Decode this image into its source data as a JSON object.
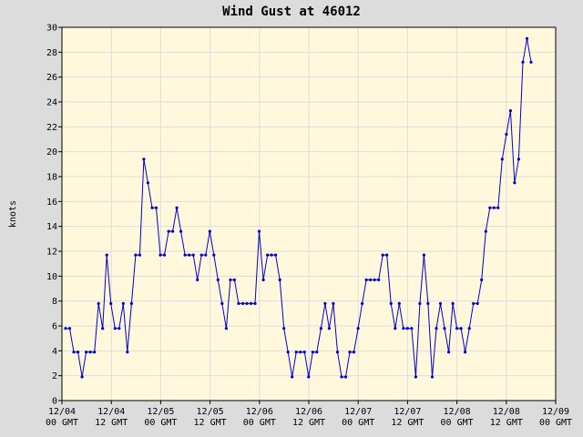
{
  "chart_data": {
    "type": "line",
    "title": "Wind Gust at 46012",
    "xlabel": "",
    "ylabel": "knots",
    "ylim": [
      0,
      30
    ],
    "y_ticks": [
      0,
      2,
      4,
      6,
      8,
      10,
      12,
      14,
      16,
      18,
      20,
      22,
      24,
      26,
      28,
      30
    ],
    "x_ticks": [
      {
        "date": "12/04",
        "time": "00 GMT"
      },
      {
        "date": "12/04",
        "time": "12 GMT"
      },
      {
        "date": "12/05",
        "time": "00 GMT"
      },
      {
        "date": "12/05",
        "time": "12 GMT"
      },
      {
        "date": "12/06",
        "time": "00 GMT"
      },
      {
        "date": "12/06",
        "time": "12 GMT"
      },
      {
        "date": "12/07",
        "time": "00 GMT"
      },
      {
        "date": "12/07",
        "time": "12 GMT"
      },
      {
        "date": "12/08",
        "time": "00 GMT"
      },
      {
        "date": "12/08",
        "time": "12 GMT"
      },
      {
        "date": "12/09",
        "time": "00 GMT"
      }
    ],
    "grid": true,
    "colors": {
      "line": "#0000cc",
      "plot_bg": "#fff8dc",
      "grid": "#dddddd",
      "page_bg": "#dcdcdc"
    },
    "series": [
      {
        "values": [
          5.8,
          5.8,
          3.9,
          3.9,
          1.9,
          3.9,
          3.9,
          3.9,
          7.8,
          5.8,
          11.7,
          7.8,
          5.8,
          5.8,
          7.8,
          3.9,
          7.8,
          11.7,
          11.7,
          19.4,
          17.5,
          15.5,
          15.5,
          11.7,
          11.7,
          13.6,
          13.6,
          15.5,
          13.6,
          11.7,
          11.7,
          11.7,
          9.7,
          11.7,
          11.7,
          13.6,
          11.7,
          9.7,
          7.8,
          5.8,
          9.7,
          9.7,
          7.8,
          7.8,
          7.8,
          7.8,
          7.8,
          13.6,
          9.7,
          11.7,
          11.7,
          11.7,
          9.7,
          5.8,
          3.9,
          1.9,
          3.9,
          3.9,
          3.9,
          1.9,
          3.9,
          3.9,
          5.8,
          7.8,
          5.8,
          7.8,
          3.9,
          1.9,
          1.9,
          3.9,
          3.9,
          5.8,
          7.8,
          9.7,
          9.7,
          9.7,
          9.7,
          11.7,
          11.7,
          7.8,
          5.8,
          7.8,
          5.8,
          5.8,
          5.8,
          1.9,
          7.8,
          11.7,
          7.8,
          1.9,
          5.8,
          7.8,
          5.8,
          3.9,
          7.8,
          5.8,
          5.8,
          3.9,
          5.8,
          7.8,
          7.8,
          9.7,
          13.6,
          15.5,
          15.5,
          15.5,
          19.4,
          21.4,
          23.3,
          17.5,
          19.4,
          27.2,
          29.1,
          27.2
        ]
      }
    ]
  }
}
